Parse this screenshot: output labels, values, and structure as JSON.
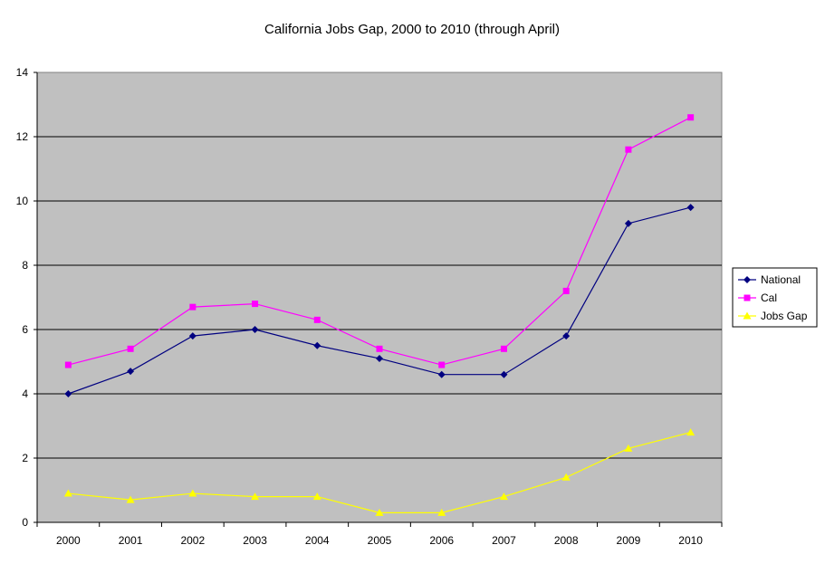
{
  "chart_data": {
    "type": "line",
    "title": "California Jobs Gap, 2000 to 2010 (through April)",
    "xlabel": "",
    "ylabel": "",
    "ylim": [
      0,
      14
    ],
    "yticks": [
      0,
      2,
      4,
      6,
      8,
      10,
      12,
      14
    ],
    "grid": true,
    "legend_position": "right",
    "categories": [
      "2000",
      "2001",
      "2002",
      "2003",
      "2004",
      "2005",
      "2006",
      "2007",
      "2008",
      "2009",
      "2010"
    ],
    "series": [
      {
        "name": "National",
        "color": "#000080",
        "marker": "diamond",
        "values": [
          4.0,
          4.7,
          5.8,
          6.0,
          5.5,
          5.1,
          4.6,
          4.6,
          5.8,
          9.3,
          9.8
        ]
      },
      {
        "name": "Cal",
        "color": "#FF00FF",
        "marker": "square",
        "values": [
          4.9,
          5.4,
          6.7,
          6.8,
          6.3,
          5.4,
          4.9,
          5.4,
          7.2,
          11.6,
          12.6
        ]
      },
      {
        "name": "Jobs Gap",
        "color": "#FFFF00",
        "marker": "triangle",
        "values": [
          0.9,
          0.7,
          0.9,
          0.8,
          0.8,
          0.3,
          0.3,
          0.8,
          1.4,
          2.3,
          2.8
        ]
      }
    ]
  }
}
